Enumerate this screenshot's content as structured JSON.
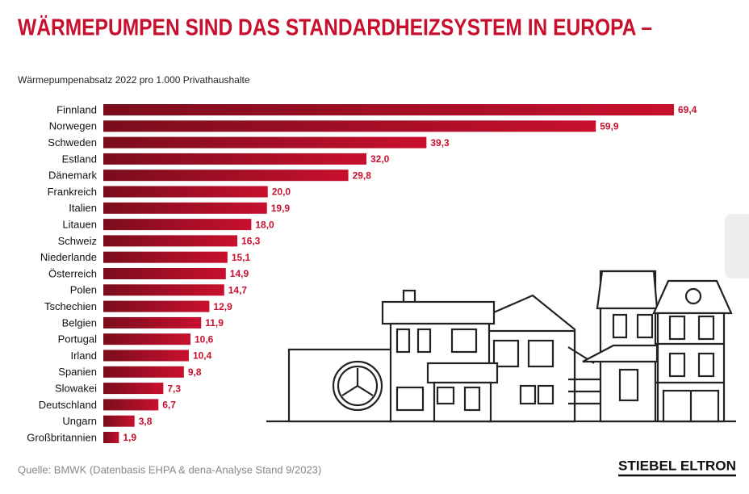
{
  "chart_data": {
    "type": "bar",
    "orientation": "horizontal",
    "title": "WÄRMEPUMPEN SIND DAS STANDARDHEIZSYSTEM IN EUROPA –",
    "subtitle": "Wärmepumpenabsatz 2022 pro 1.000 Privathaushalte",
    "categories": [
      "Finnland",
      "Norwegen",
      "Schweden",
      "Estland",
      "Dänemark",
      "Frankreich",
      "Italien",
      "Litauen",
      "Schweiz",
      "Niederlande",
      "Österreich",
      "Polen",
      "Tschechien",
      "Belgien",
      "Portugal",
      "Irland",
      "Spanien",
      "Slowakei",
      "Deutschland",
      "Ungarn",
      "Großbritannien"
    ],
    "values": [
      69.4,
      59.9,
      39.3,
      32.0,
      29.8,
      20.0,
      19.9,
      18.0,
      16.3,
      15.1,
      14.9,
      14.7,
      12.9,
      11.9,
      10.6,
      10.4,
      9.8,
      7.3,
      6.7,
      3.8,
      1.9
    ],
    "value_labels": [
      "69,4",
      "59,9",
      "39,3",
      "32,0",
      "29,8",
      "20,0",
      "19,9",
      "18,0",
      "16,3",
      "15,1",
      "14,9",
      "14,7",
      "12,9",
      "11,9",
      "10,6",
      "10,4",
      "9,8",
      "7,3",
      "6,7",
      "3,8",
      "1,9"
    ],
    "color": "#c8102e",
    "source": "Quelle: BMWK (Datenbasis EHPA & dena-Analyse Stand 9/2023)",
    "logo": "STIEBEL ELTRON"
  }
}
